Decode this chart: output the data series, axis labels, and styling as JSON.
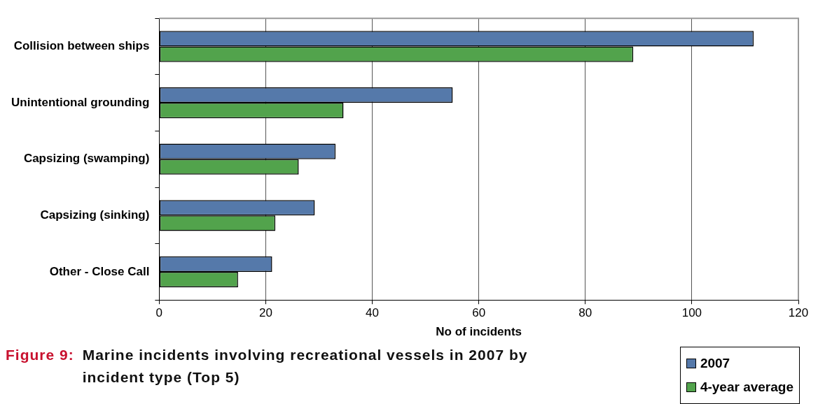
{
  "chart_data": {
    "type": "bar",
    "orientation": "horizontal",
    "title": "Marine incidents involving recreational vessels in 2007 by incident type (Top 5)",
    "annotations": [
      "Figure 9:"
    ],
    "xlabel": "No of incidents",
    "categories": [
      "Collision between ships",
      "Unintentional grounding",
      "Capsizing (swamping)",
      "Capsizing (sinking)",
      "Other - Close Call"
    ],
    "series": [
      {
        "name": "2007",
        "color": "#5579aa",
        "values": [
          111.6,
          55.1,
          33.1,
          29.2,
          21.2
        ]
      },
      {
        "name": "4-year average",
        "color": "#52a34c",
        "values": [
          89.0,
          34.6,
          26.2,
          21.8,
          14.8
        ]
      }
    ],
    "xlim": [
      0,
      120
    ],
    "xticks": [
      0,
      20,
      40,
      60,
      80,
      100,
      120
    ],
    "grid": "x",
    "legend": "bottom right"
  }
}
